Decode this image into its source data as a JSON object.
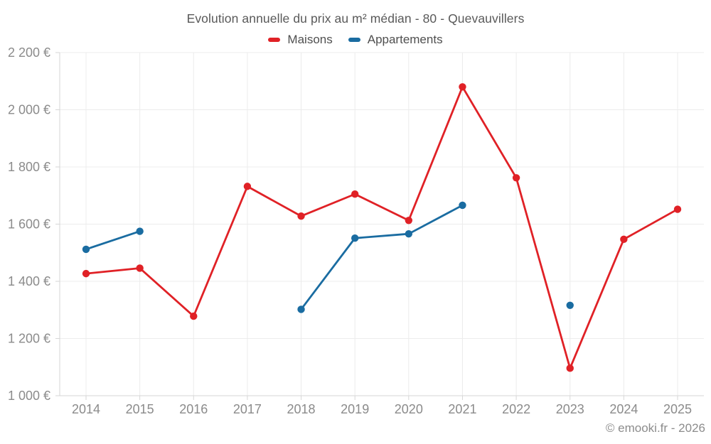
{
  "header": {
    "title": "Evolution annuelle du prix au m² médian - 80 - Quevauvillers"
  },
  "footer": {
    "credit": "© emooki.fr - 2026"
  },
  "chart_data": {
    "type": "line",
    "x": [
      2014,
      2015,
      2016,
      2017,
      2018,
      2019,
      2020,
      2021,
      2022,
      2023,
      2024,
      2025
    ],
    "x_labels": [
      "2014",
      "2015",
      "2016",
      "2017",
      "2018",
      "2019",
      "2020",
      "2021",
      "2022",
      "2023",
      "2024",
      "2025"
    ],
    "series": [
      {
        "name": "Maisons",
        "color": "#e02126",
        "values": [
          1427,
          1446,
          1278,
          1732,
          1628,
          1705,
          1613,
          2080,
          1762,
          1096,
          1547,
          1652
        ]
      },
      {
        "name": "Appartements",
        "color": "#1a6ca1",
        "values": [
          1512,
          1575,
          null,
          null,
          1302,
          1551,
          1566,
          1666,
          null,
          1316,
          null,
          null
        ]
      }
    ],
    "ylim": [
      1000,
      2200
    ],
    "ytick_step": 200,
    "ytick_labels": [
      "1 000 €",
      "1 200 €",
      "1 400 €",
      "1 600 €",
      "1 800 €",
      "2 000 €",
      "2 200 €"
    ],
    "grid": true,
    "legend_position": "top",
    "title": "Evolution annuelle du prix au m² médian - 80 - Quevauvillers",
    "xlabel": "",
    "ylabel": ""
  }
}
